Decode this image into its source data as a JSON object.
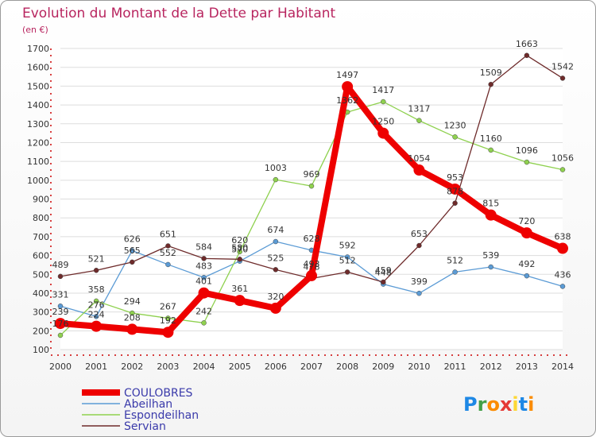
{
  "chart_data": {
    "type": "line",
    "title": "Evolution du Montant de la Dette par Habitant",
    "subtitle": "(en €)",
    "x": [
      "2000",
      "2001",
      "2002",
      "2003",
      "2004",
      "2005",
      "2006",
      "2007",
      "2008",
      "2009",
      "2010",
      "2011",
      "2012",
      "2013",
      "2014"
    ],
    "ylim": [
      100,
      1700
    ],
    "yticks": [
      100,
      200,
      300,
      400,
      500,
      600,
      700,
      800,
      900,
      1000,
      1100,
      1200,
      1300,
      1400,
      1500,
      1600,
      1700
    ],
    "grid": true,
    "legend_position": "bottom-left",
    "series": [
      {
        "name": "COULOBRES",
        "color": "#ee0000",
        "values": [
          239,
          224,
          208,
          192,
          401,
          361,
          320,
          493,
          1497,
          1250,
          1054,
          953,
          815,
          720,
          638
        ]
      },
      {
        "name": "Abeilhan",
        "color": "#5b9bd5",
        "values": [
          331,
          276,
          626,
          552,
          483,
          570,
          674,
          628,
          592,
          448,
          399,
          512,
          539,
          492,
          436
        ]
      },
      {
        "name": "Espondeilhan",
        "color": "#8fd14f",
        "values": [
          176,
          358,
          294,
          267,
          242,
          620,
          1003,
          969,
          1362,
          1417,
          1317,
          1230,
          1160,
          1096,
          1056
        ]
      },
      {
        "name": "Servian",
        "color": "#6e2b2b",
        "values": [
          489,
          521,
          565,
          651,
          584,
          580,
          525,
          478,
          512,
          459,
          653,
          878,
          1509,
          1663,
          1542
        ]
      }
    ]
  },
  "logo": {
    "letters": [
      "P",
      "r",
      "o",
      "x",
      "i",
      "t",
      "i"
    ],
    "colors": [
      "#1e88e5",
      "#43a047",
      "#fb8c00",
      "#e53935",
      "#fdd835",
      "#1e88e5",
      "#fb8c00"
    ]
  }
}
